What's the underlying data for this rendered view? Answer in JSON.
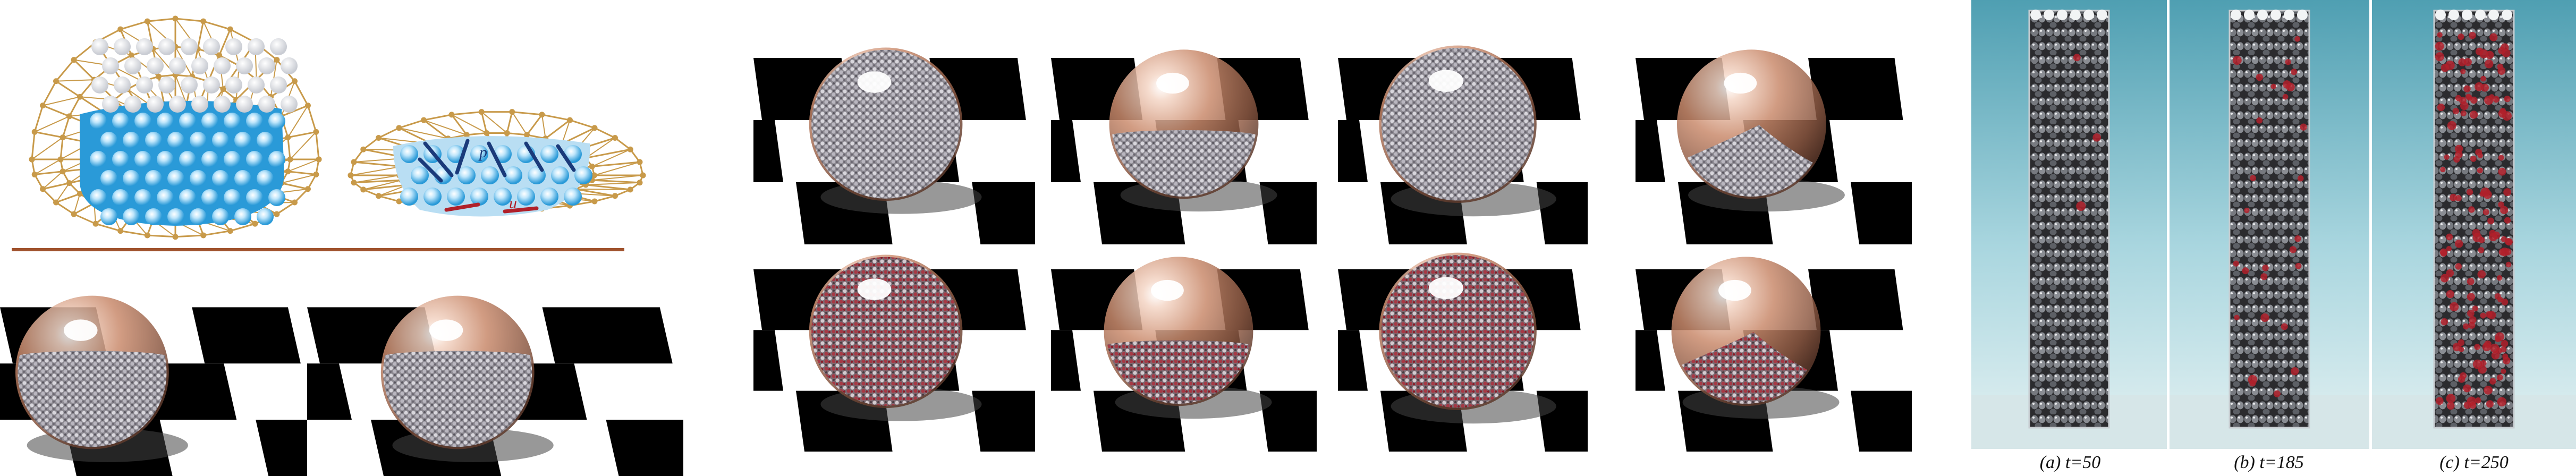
{
  "figure": {
    "left_diagram": {
      "labels": {
        "p_label": "p",
        "u_label": "u"
      }
    },
    "column_sequence": {
      "captions": [
        "(a) t=50",
        "(b) t=185",
        "(c) t=250"
      ]
    },
    "colors": {
      "mesh_gold": "#c89a4a",
      "fluid_blue": "#2a9ad8",
      "dome_copper": "#c98a6c",
      "floor_line": "#a0522d",
      "wet_red": "#b0202a",
      "sky_teal": "#8fc7d3"
    }
  }
}
